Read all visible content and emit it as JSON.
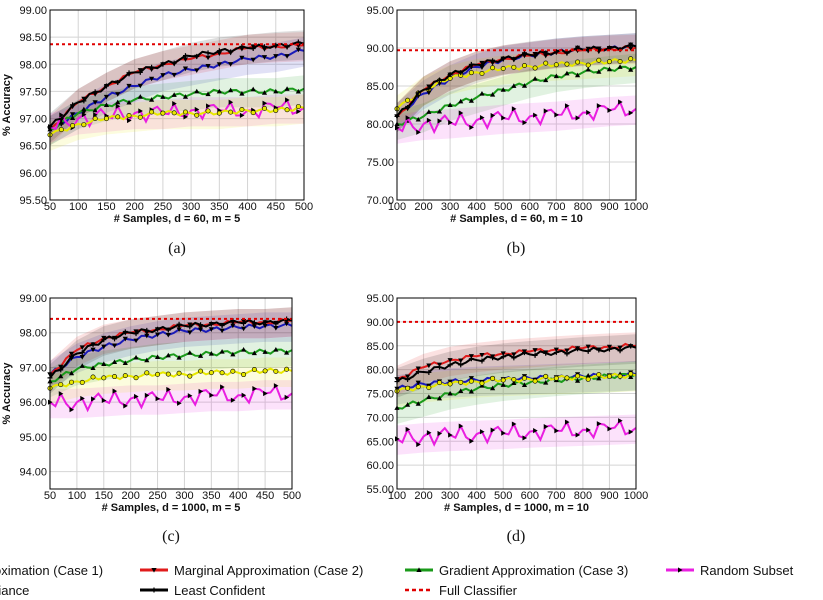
{
  "colors": {
    "marginal_case1": "#1a1ab8",
    "marginal_case2": "#e01b1b",
    "gradient_case3": "#1a9a1a",
    "random_subset": "#e91ee0",
    "variance": "#e8e800",
    "least_confident": "#000000",
    "full_classifier": "#e00000"
  },
  "captions": [
    "(a)",
    "(b)",
    "(c)",
    "(d)"
  ],
  "legend": {
    "items": [
      {
        "key": "marginal_case1",
        "label": "oximation (Case 1)"
      },
      {
        "key": "marginal_case2",
        "label": "Marginal Approximation (Case 2)"
      },
      {
        "key": "gradient_case3",
        "label": "Gradient Approximation (Case 3)"
      },
      {
        "key": "random_subset",
        "label": "Random Subset"
      },
      {
        "key": "variance",
        "label": "riance"
      },
      {
        "key": "least_confident",
        "label": "Least Confident"
      },
      {
        "key": "full_classifier",
        "label": "Full Classifier"
      }
    ]
  },
  "chart_data": [
    {
      "type": "line",
      "caption": "(a)",
      "xlabel": "# Samples, d = 60, m = 5",
      "ylabel": "% Accuracy",
      "xlim": [
        50,
        500
      ],
      "ylim": [
        95.5,
        99.0
      ],
      "xticks": [
        50,
        100,
        150,
        200,
        250,
        300,
        350,
        400,
        450,
        500
      ],
      "yticks": [
        "95.50",
        "96.00",
        "96.50",
        "97.00",
        "97.50",
        "98.00",
        "98.50",
        "99.00"
      ],
      "full_classifier": 98.37,
      "x": [
        50,
        100,
        150,
        200,
        250,
        300,
        350,
        400,
        450,
        500
      ],
      "series": [
        {
          "key": "marginal_case1",
          "values": [
            96.8,
            97.1,
            97.4,
            97.6,
            97.8,
            97.9,
            98.0,
            98.1,
            98.15,
            98.25
          ]
        },
        {
          "key": "marginal_case2",
          "values": [
            96.8,
            97.3,
            97.6,
            97.85,
            98.0,
            98.1,
            98.2,
            98.3,
            98.33,
            98.35
          ]
        },
        {
          "key": "gradient_case3",
          "values": [
            96.8,
            97.1,
            97.25,
            97.35,
            97.4,
            97.45,
            97.5,
            97.5,
            97.5,
            97.55
          ]
        },
        {
          "key": "random_subset",
          "values": [
            96.85,
            97.0,
            97.05,
            97.1,
            97.1,
            97.15,
            97.15,
            97.15,
            97.2,
            97.2
          ]
        },
        {
          "key": "variance",
          "values": [
            96.7,
            96.9,
            97.0,
            97.05,
            97.1,
            97.1,
            97.1,
            97.15,
            97.15,
            97.2
          ]
        },
        {
          "key": "least_confident",
          "values": [
            96.85,
            97.3,
            97.6,
            97.85,
            98.0,
            98.15,
            98.25,
            98.3,
            98.35,
            98.38
          ]
        }
      ]
    },
    {
      "type": "line",
      "caption": "(b)",
      "xlabel": "# Samples, d = 60, m = 10",
      "ylabel": "",
      "xlim": [
        100,
        1000
      ],
      "ylim": [
        70.0,
        95.0
      ],
      "xticks": [
        100,
        200,
        300,
        400,
        500,
        600,
        700,
        800,
        900,
        1000
      ],
      "yticks": [
        "70.00",
        "75.00",
        "80.00",
        "85.00",
        "90.00",
        "95.00"
      ],
      "full_classifier": 89.7,
      "x": [
        100,
        200,
        300,
        400,
        500,
        600,
        700,
        800,
        900,
        1000
      ],
      "series": [
        {
          "key": "marginal_case1",
          "values": [
            81.0,
            84.0,
            86.0,
            87.5,
            88.5,
            89.0,
            89.5,
            89.8,
            90.0,
            90.2
          ]
        },
        {
          "key": "marginal_case2",
          "values": [
            81.0,
            84.5,
            86.5,
            87.8,
            88.6,
            89.0,
            89.4,
            89.7,
            89.9,
            90.0
          ]
        },
        {
          "key": "gradient_case3",
          "values": [
            80.0,
            81.0,
            82.5,
            83.5,
            84.5,
            85.5,
            86.3,
            86.8,
            87.2,
            87.5
          ]
        },
        {
          "key": "random_subset",
          "values": [
            79.5,
            80.0,
            80.2,
            80.5,
            80.8,
            81.0,
            81.2,
            81.5,
            81.8,
            82.0
          ]
        },
        {
          "key": "variance",
          "values": [
            82.0,
            84.5,
            86.0,
            86.8,
            87.3,
            87.6,
            87.8,
            88.0,
            88.2,
            88.4
          ]
        },
        {
          "key": "least_confident",
          "values": [
            81.0,
            84.5,
            86.5,
            87.8,
            88.6,
            89.1,
            89.5,
            89.8,
            90.0,
            90.2
          ]
        }
      ]
    },
    {
      "type": "line",
      "caption": "(c)",
      "xlabel": "# Samples, d = 1000, m = 5",
      "ylabel": "% Accuracy",
      "xlim": [
        50,
        500
      ],
      "ylim": [
        93.5,
        99.0
      ],
      "xticks": [
        50,
        100,
        150,
        200,
        250,
        300,
        350,
        400,
        450,
        500
      ],
      "yticks": [
        "94.00",
        "95.00",
        "96.00",
        "97.00",
        "98.00",
        "99.00"
      ],
      "full_classifier": 98.4,
      "x": [
        50,
        100,
        150,
        200,
        250,
        300,
        350,
        400,
        450,
        500
      ],
      "series": [
        {
          "key": "marginal_case1",
          "values": [
            96.8,
            97.3,
            97.6,
            97.8,
            97.95,
            98.05,
            98.1,
            98.15,
            98.2,
            98.2
          ]
        },
        {
          "key": "marginal_case2",
          "values": [
            96.8,
            97.5,
            97.85,
            98.0,
            98.1,
            98.2,
            98.25,
            98.3,
            98.3,
            98.35
          ]
        },
        {
          "key": "gradient_case3",
          "values": [
            96.6,
            96.95,
            97.1,
            97.2,
            97.3,
            97.35,
            97.4,
            97.45,
            97.45,
            97.5
          ]
        },
        {
          "key": "random_subset",
          "values": [
            96.0,
            96.0,
            96.05,
            96.1,
            96.1,
            96.15,
            96.2,
            96.2,
            96.25,
            96.25
          ]
        },
        {
          "key": "variance",
          "values": [
            96.4,
            96.6,
            96.7,
            96.75,
            96.8,
            96.8,
            96.85,
            96.85,
            96.9,
            96.9
          ]
        },
        {
          "key": "least_confident",
          "values": [
            96.7,
            97.4,
            97.8,
            98.0,
            98.1,
            98.2,
            98.25,
            98.3,
            98.3,
            98.35
          ]
        }
      ]
    },
    {
      "type": "line",
      "caption": "(d)",
      "xlabel": "# Samples, d = 1000, m = 10",
      "ylabel": "",
      "xlim": [
        100,
        1000
      ],
      "ylim": [
        55.0,
        95.0
      ],
      "xticks": [
        100,
        200,
        300,
        400,
        500,
        600,
        700,
        800,
        900,
        1000
      ],
      "yticks": [
        "55.00",
        "60.00",
        "65.00",
        "70.00",
        "75.00",
        "80.00",
        "85.00",
        "90.00",
        "95.00"
      ],
      "full_classifier": 90.0,
      "x": [
        100,
        200,
        300,
        400,
        500,
        600,
        700,
        800,
        900,
        1000
      ],
      "series": [
        {
          "key": "marginal_case1",
          "values": [
            76.0,
            77.0,
            77.5,
            77.8,
            78.0,
            78.2,
            78.4,
            78.6,
            78.8,
            79.0
          ]
        },
        {
          "key": "marginal_case2",
          "values": [
            78.0,
            80.5,
            82.0,
            82.8,
            83.4,
            83.8,
            84.2,
            84.5,
            84.8,
            85.0
          ]
        },
        {
          "key": "gradient_case3",
          "values": [
            72.0,
            73.5,
            75.0,
            76.0,
            76.8,
            77.3,
            77.8,
            78.2,
            78.6,
            79.0
          ]
        },
        {
          "key": "random_subset",
          "values": [
            65.5,
            66.0,
            66.3,
            66.5,
            66.7,
            67.0,
            67.2,
            67.4,
            67.6,
            67.8
          ]
        },
        {
          "key": "variance",
          "values": [
            75.5,
            76.5,
            77.0,
            77.5,
            77.8,
            78.0,
            78.2,
            78.4,
            78.6,
            78.8
          ]
        },
        {
          "key": "least_confident",
          "values": [
            77.5,
            79.5,
            81.0,
            82.0,
            82.7,
            83.2,
            83.6,
            84.0,
            84.3,
            84.6
          ]
        }
      ]
    }
  ]
}
